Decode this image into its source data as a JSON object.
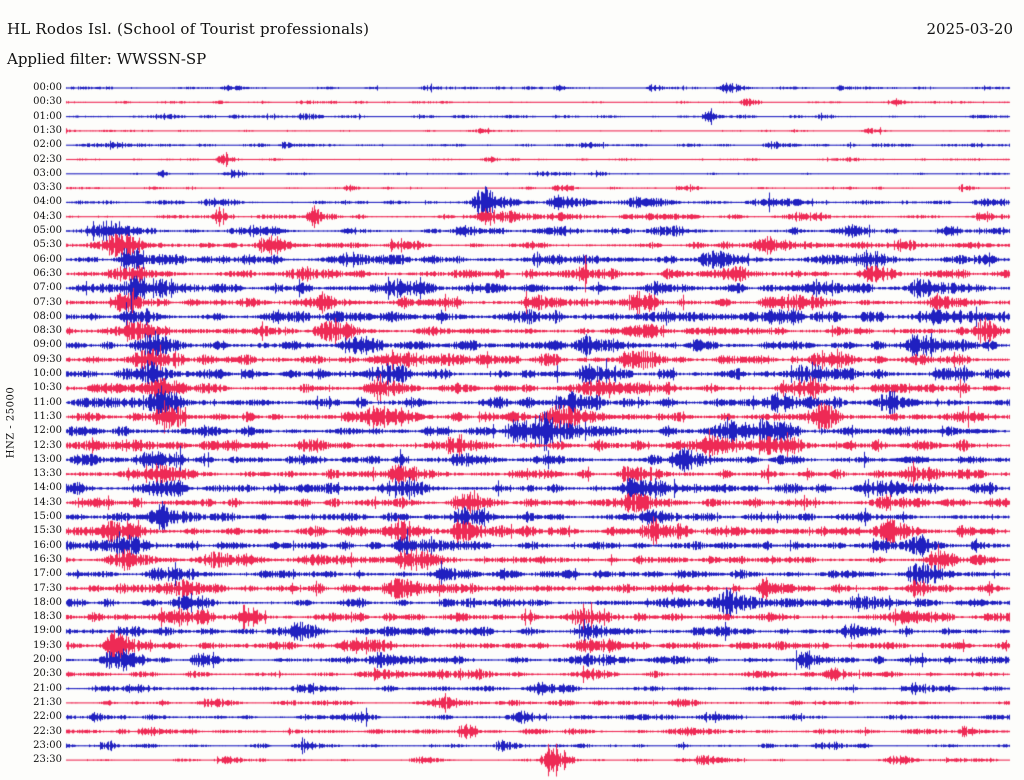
{
  "header": {
    "title": "HL Rodos Isl. (School of Tourist professionals)",
    "date": "2025-03-20",
    "filter_line": "Applied filter: WWSSN-SP",
    "y_axis_label": "HNZ - 25000"
  },
  "chart_data": {
    "type": "line",
    "subtype": "helicorder",
    "title": "HL Rodos Isl. (School of Tourist professionals)",
    "date": "2025-03-20",
    "filter": "WWSSN-SP",
    "channel": "HNZ",
    "scale": 25000,
    "row_interval_minutes": 30,
    "legend_position": "none",
    "grid": false,
    "colors": {
      "even_trace": "#2020C0",
      "odd_trace": "#EE2A55",
      "text": "#111111",
      "background": "#FDFDFB"
    },
    "rows": [
      {
        "t": "00:00",
        "amp": 1.8,
        "bursts": [
          [
            0.17,
            3,
            4
          ],
          [
            0.38,
            3,
            3
          ],
          [
            0.52,
            3,
            3
          ],
          [
            0.62,
            3,
            3
          ],
          [
            0.7,
            4,
            6
          ],
          [
            0.82,
            3,
            4
          ]
        ]
      },
      {
        "t": "00:30",
        "amp": 1.6,
        "bursts": [
          [
            0.25,
            2.5,
            4
          ],
          [
            0.72,
            4,
            4
          ],
          [
            0.88,
            3,
            3
          ]
        ]
      },
      {
        "t": "01:00",
        "amp": 1.8,
        "bursts": [
          [
            0.1,
            2.5,
            5
          ],
          [
            0.25,
            3,
            4
          ],
          [
            0.68,
            6,
            3
          ],
          [
            0.8,
            2.5,
            4
          ]
        ]
      },
      {
        "t": "01:30",
        "amp": 1.2,
        "bursts": [
          [
            0.0,
            3,
            2
          ],
          [
            0.44,
            3,
            3
          ],
          [
            0.85,
            3,
            4
          ]
        ]
      },
      {
        "t": "02:00",
        "amp": 2.0,
        "bursts": [
          [
            0.05,
            3,
            4
          ],
          [
            0.23,
            3,
            3
          ],
          [
            0.55,
            2.5,
            4
          ],
          [
            0.75,
            3,
            5
          ]
        ]
      },
      {
        "t": "02:30",
        "amp": 1.5,
        "bursts": [
          [
            0.165,
            8,
            3
          ],
          [
            0.45,
            2.5,
            3
          ],
          [
            0.83,
            2.5,
            3
          ]
        ]
      },
      {
        "t": "03:00",
        "amp": 1.2,
        "bursts": [
          [
            0.1,
            6,
            2
          ],
          [
            0.175,
            5,
            4
          ],
          [
            0.5,
            2.5,
            8
          ],
          [
            0.56,
            3,
            4
          ]
        ]
      },
      {
        "t": "03:30",
        "amp": 1.6,
        "bursts": [
          [
            0.3,
            3,
            4
          ],
          [
            0.52,
            4,
            4
          ],
          [
            0.65,
            3,
            5
          ],
          [
            0.95,
            4,
            3
          ]
        ]
      },
      {
        "t": "04:00",
        "amp": 2.5,
        "bursts": [
          [
            0.155,
            3,
            6
          ],
          [
            0.44,
            14,
            7
          ],
          [
            0.52,
            9,
            6
          ],
          [
            0.6,
            5,
            8
          ],
          [
            0.75,
            4,
            10
          ],
          [
            0.97,
            5,
            5
          ]
        ]
      },
      {
        "t": "04:30",
        "amp": 3.0,
        "bursts": [
          [
            0.16,
            10,
            3
          ],
          [
            0.26,
            12,
            3
          ],
          [
            0.45,
            8,
            8
          ],
          [
            0.52,
            4,
            6
          ],
          [
            0.78,
            4,
            6
          ],
          [
            0.97,
            6,
            4
          ]
        ]
      },
      {
        "t": "05:00",
        "amp": 3.5,
        "bursts": [
          [
            0.045,
            10,
            8
          ],
          [
            0.2,
            5,
            6
          ],
          [
            0.42,
            5,
            6
          ],
          [
            0.52,
            6,
            6
          ],
          [
            0.63,
            5,
            8
          ],
          [
            0.83,
            6,
            6
          ],
          [
            0.93,
            5,
            5
          ]
        ]
      },
      {
        "t": "05:30",
        "amp": 4.0,
        "bursts": [
          [
            0.05,
            12,
            8
          ],
          [
            0.21,
            10,
            6
          ],
          [
            0.35,
            5,
            6
          ],
          [
            0.74,
            8,
            8
          ],
          [
            0.88,
            5,
            6
          ]
        ]
      },
      {
        "t": "06:00",
        "amp": 5.0,
        "bursts": [
          [
            0.07,
            8,
            8
          ],
          [
            0.3,
            6,
            6
          ],
          [
            0.5,
            6,
            8
          ],
          [
            0.68,
            6,
            8
          ],
          [
            0.85,
            8,
            8
          ],
          [
            0.97,
            8,
            4
          ]
        ]
      },
      {
        "t": "06:30",
        "amp": 5.0,
        "bursts": [
          [
            0.06,
            8,
            10
          ],
          [
            0.25,
            6,
            8
          ],
          [
            0.55,
            10,
            6
          ],
          [
            0.7,
            6,
            8
          ],
          [
            0.85,
            8,
            6
          ]
        ]
      },
      {
        "t": "07:00",
        "amp": 5.5,
        "bursts": [
          [
            0.07,
            9,
            8
          ],
          [
            0.1,
            8,
            6
          ],
          [
            0.35,
            6,
            8
          ],
          [
            0.62,
            6,
            6
          ],
          [
            0.8,
            7,
            8
          ],
          [
            0.9,
            7,
            6
          ]
        ]
      },
      {
        "t": "07:30",
        "amp": 5.5,
        "bursts": [
          [
            0.06,
            8,
            8
          ],
          [
            0.27,
            8,
            6
          ],
          [
            0.5,
            6,
            8
          ],
          [
            0.6,
            8,
            6
          ],
          [
            0.77,
            6,
            8
          ],
          [
            0.92,
            8,
            6
          ]
        ]
      },
      {
        "t": "08:00",
        "amp": 5.5,
        "bursts": [
          [
            0.07,
            10,
            6
          ],
          [
            0.22,
            6,
            8
          ],
          [
            0.48,
            6,
            8
          ],
          [
            0.75,
            6,
            8
          ],
          [
            0.92,
            8,
            8
          ]
        ]
      },
      {
        "t": "08:30",
        "amp": 5.5,
        "bursts": [
          [
            0.07,
            10,
            8
          ],
          [
            0.28,
            8,
            8
          ],
          [
            0.6,
            6,
            8
          ],
          [
            0.97,
            10,
            5
          ]
        ]
      },
      {
        "t": "09:00",
        "amp": 6.0,
        "bursts": [
          [
            0.09,
            10,
            6
          ],
          [
            0.3,
            7,
            8
          ],
          [
            0.55,
            7,
            8
          ],
          [
            0.9,
            10,
            8
          ]
        ]
      },
      {
        "t": "09:30",
        "amp": 6.0,
        "bursts": [
          [
            0.09,
            9,
            8
          ],
          [
            0.35,
            7,
            8
          ],
          [
            0.6,
            7,
            8
          ],
          [
            0.8,
            7,
            8
          ]
        ]
      },
      {
        "t": "10:00",
        "amp": 6.0,
        "bursts": [
          [
            0.09,
            9,
            6
          ],
          [
            0.33,
            8,
            8
          ],
          [
            0.55,
            7,
            8
          ],
          [
            0.78,
            8,
            8
          ],
          [
            0.93,
            7,
            6
          ]
        ]
      },
      {
        "t": "10:30",
        "amp": 6.0,
        "bursts": [
          [
            0.1,
            8,
            6
          ],
          [
            0.33,
            10,
            8
          ],
          [
            0.57,
            7,
            8
          ],
          [
            0.77,
            9,
            8
          ]
        ]
      },
      {
        "t": "11:00",
        "amp": 6.0,
        "bursts": [
          [
            0.095,
            12,
            6
          ],
          [
            0.53,
            10,
            8
          ],
          [
            0.75,
            8,
            8
          ],
          [
            0.87,
            8,
            6
          ]
        ]
      },
      {
        "t": "11:30",
        "amp": 6.0,
        "bursts": [
          [
            0.1,
            9,
            6
          ],
          [
            0.33,
            8,
            8
          ],
          [
            0.52,
            8,
            8
          ],
          [
            0.8,
            10,
            6
          ]
        ]
      },
      {
        "t": "12:00",
        "amp": 6.0,
        "bursts": [
          [
            0.48,
            12,
            9
          ],
          [
            0.51,
            10,
            8
          ],
          [
            0.7,
            9,
            8
          ],
          [
            0.74,
            10,
            6
          ]
        ]
      },
      {
        "t": "12:30",
        "amp": 6.0,
        "bursts": [
          [
            0.41,
            10,
            8
          ],
          [
            0.68,
            9,
            10
          ],
          [
            0.74,
            9,
            8
          ]
        ]
      },
      {
        "t": "13:00",
        "amp": 5.5,
        "bursts": [
          [
            0.09,
            8,
            8
          ],
          [
            0.42,
            7,
            8
          ],
          [
            0.65,
            8,
            8
          ]
        ]
      },
      {
        "t": "13:30",
        "amp": 5.5,
        "bursts": [
          [
            0.1,
            8,
            8
          ],
          [
            0.35,
            10,
            8
          ],
          [
            0.6,
            7,
            8
          ],
          [
            0.9,
            7,
            6
          ]
        ]
      },
      {
        "t": "14:00",
        "amp": 6.0,
        "bursts": [
          [
            0.09,
            8,
            8
          ],
          [
            0.35,
            8,
            8
          ],
          [
            0.6,
            8,
            8
          ],
          [
            0.85,
            7,
            8
          ]
        ]
      },
      {
        "t": "14:30",
        "amp": 5.5,
        "bursts": [
          [
            0.42,
            9,
            8
          ],
          [
            0.6,
            7,
            8
          ],
          [
            0.87,
            7,
            8
          ]
        ]
      },
      {
        "t": "15:00",
        "amp": 5.5,
        "bursts": [
          [
            0.1,
            8,
            6
          ],
          [
            0.42,
            8,
            8
          ],
          [
            0.62,
            7,
            8
          ]
        ]
      },
      {
        "t": "15:30",
        "amp": 6.0,
        "bursts": [
          [
            0.05,
            10,
            8
          ],
          [
            0.35,
            9,
            8
          ],
          [
            0.42,
            9,
            6
          ],
          [
            0.62,
            8,
            8
          ],
          [
            0.87,
            10,
            8
          ]
        ]
      },
      {
        "t": "16:00",
        "amp": 5.5,
        "bursts": [
          [
            0.06,
            9,
            8
          ],
          [
            0.36,
            8,
            8
          ],
          [
            0.9,
            8,
            6
          ]
        ]
      },
      {
        "t": "16:30",
        "amp": 5.5,
        "bursts": [
          [
            0.06,
            10,
            8
          ],
          [
            0.16,
            8,
            8
          ],
          [
            0.36,
            9,
            8
          ],
          [
            0.92,
            7,
            6
          ]
        ]
      },
      {
        "t": "17:00",
        "amp": 5.0,
        "bursts": [
          [
            0.1,
            7,
            8
          ],
          [
            0.4,
            7,
            8
          ],
          [
            0.9,
            9,
            8
          ]
        ]
      },
      {
        "t": "17:30",
        "amp": 5.5,
        "bursts": [
          [
            0.12,
            8,
            8
          ],
          [
            0.35,
            10,
            8
          ],
          [
            0.74,
            10,
            6
          ],
          [
            0.9,
            7,
            6
          ]
        ]
      },
      {
        "t": "18:00",
        "amp": 5.0,
        "bursts": [
          [
            0.13,
            8,
            6
          ],
          [
            0.7,
            10,
            8
          ],
          [
            0.84,
            8,
            6
          ]
        ]
      },
      {
        "t": "18:30",
        "amp": 5.0,
        "bursts": [
          [
            0.12,
            8,
            8
          ],
          [
            0.19,
            12,
            4
          ],
          [
            0.55,
            7,
            8
          ],
          [
            0.88,
            7,
            6
          ]
        ]
      },
      {
        "t": "19:00",
        "amp": 5.0,
        "bursts": [
          [
            0.24,
            7,
            6
          ],
          [
            0.55,
            7,
            8
          ],
          [
            0.83,
            9,
            6
          ]
        ]
      },
      {
        "t": "19:30",
        "amp": 4.5,
        "bursts": [
          [
            0.05,
            14,
            7
          ],
          [
            0.3,
            6,
            8
          ],
          [
            0.55,
            6,
            8
          ]
        ]
      },
      {
        "t": "20:00",
        "amp": 4.0,
        "bursts": [
          [
            0.05,
            9,
            8
          ],
          [
            0.14,
            7,
            6
          ],
          [
            0.33,
            6,
            6
          ],
          [
            0.55,
            6,
            8
          ],
          [
            0.78,
            6,
            6
          ]
        ]
      },
      {
        "t": "20:30",
        "amp": 3.5,
        "bursts": [
          [
            0.33,
            6,
            6
          ],
          [
            0.42,
            5,
            8
          ],
          [
            0.55,
            5,
            6
          ],
          [
            0.81,
            7,
            5
          ]
        ]
      },
      {
        "t": "21:00",
        "amp": 3.2,
        "bursts": [
          [
            0.07,
            5,
            6
          ],
          [
            0.25,
            5,
            6
          ],
          [
            0.5,
            5,
            8
          ],
          [
            0.9,
            5,
            6
          ]
        ]
      },
      {
        "t": "21:30",
        "amp": 3.0,
        "bursts": [
          [
            0.15,
            5,
            6
          ],
          [
            0.4,
            4,
            8
          ],
          [
            0.65,
            4,
            6
          ]
        ]
      },
      {
        "t": "22:00",
        "amp": 3.0,
        "bursts": [
          [
            0.03,
            5,
            4
          ],
          [
            0.3,
            5,
            6
          ],
          [
            0.48,
            5,
            6
          ],
          [
            0.68,
            4,
            6
          ]
        ]
      },
      {
        "t": "22:30",
        "amp": 3.0,
        "bursts": [
          [
            0.08,
            5,
            4
          ],
          [
            0.42,
            7,
            4
          ],
          [
            0.65,
            4,
            6
          ],
          [
            0.95,
            5,
            4
          ]
        ]
      },
      {
        "t": "23:00",
        "amp": 2.5,
        "bursts": [
          [
            0.04,
            5,
            4
          ],
          [
            0.25,
            4,
            6
          ],
          [
            0.46,
            6,
            4
          ],
          [
            0.8,
            4,
            6
          ]
        ]
      },
      {
        "t": "23:30",
        "amp": 2.0,
        "bursts": [
          [
            0.17,
            4,
            5
          ],
          [
            0.38,
            3,
            6
          ],
          [
            0.513,
            18,
            5
          ],
          [
            0.67,
            5,
            5
          ],
          [
            0.88,
            4,
            6
          ]
        ]
      }
    ]
  }
}
